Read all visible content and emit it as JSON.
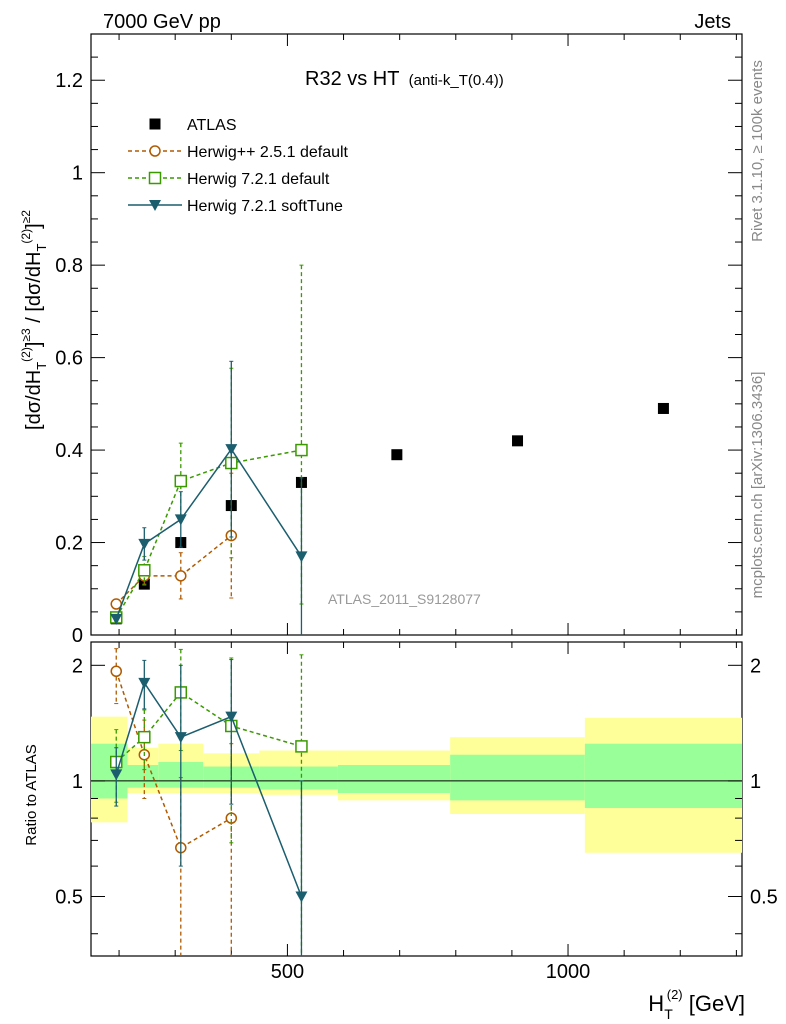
{
  "header": {
    "left": "7000 GeV pp",
    "right": "Jets"
  },
  "side_labels": {
    "rivet": "Rivet 3.1.10, ≥ 100k events",
    "mcplots": "mcplots.cern.ch [arXiv:1306.3436]"
  },
  "plot_title": {
    "main": "R32 vs HT",
    "sub": "(anti-k_T(0.4))"
  },
  "analysis_label": "ATLAS_2011_S9128077",
  "colors": {
    "atlas": "#000000",
    "herwigpp": "#b05a00",
    "h721_default": "#3a9a00",
    "h721_soft": "#1b5e6e",
    "band_outer": "#ffff99",
    "band_inner": "#99ff99"
  },
  "chart_data": [
    {
      "type": "scatter",
      "title": "R32 vs HT (anti-kT(0.4))",
      "ylabel": "[dσ/dH_T^(2)]^{≥3} / [dσ/dH_T^(2)]^{≥2}",
      "xlabel": "H_T^(2) [GeV]",
      "xlim": [
        150,
        1310
      ],
      "ylim": [
        0,
        1.3
      ],
      "yticks": [
        "0",
        "0.2",
        "0.4",
        "0.6",
        "0.8",
        "1",
        "1.2"
      ],
      "legend": [
        {
          "name": "ATLAS",
          "style": "filled-square"
        },
        {
          "name": "Herwig++ 2.5.1 default",
          "style": "open-circle-dashed"
        },
        {
          "name": "Herwig 7.2.1 default",
          "style": "open-square-dashed"
        },
        {
          "name": "Herwig 7.2.1 softTune",
          "style": "filled-triangle-solid"
        }
      ],
      "series": [
        {
          "name": "ATLAS",
          "x": [
            195,
            245,
            310,
            400,
            525,
            695,
            910,
            1170
          ],
          "y": [
            0.035,
            0.11,
            0.2,
            0.28,
            0.33,
            0.39,
            0.42,
            0.49
          ]
        },
        {
          "name": "Herwig++ 2.5.1 default",
          "x": [
            195,
            245,
            310,
            400
          ],
          "y": [
            0.067,
            0.128,
            0.128,
            0.215
          ],
          "err": [
            [
              0.003,
              0.003
            ],
            [
              0.02,
              0.02
            ],
            [
              0.05,
              0.05
            ],
            [
              0.135,
              0.135
            ]
          ]
        },
        {
          "name": "Herwig 7.2.1 default",
          "x": [
            195,
            245,
            310,
            400,
            525
          ],
          "y": [
            0.038,
            0.14,
            0.333,
            0.372,
            0.4
          ],
          "err": [
            [
              0.006,
              0.006
            ],
            [
              0.03,
              0.03
            ],
            [
              0.082,
              0.082
            ],
            [
              0.205,
              0.205
            ],
            [
              0.333,
              0.4
            ]
          ]
        },
        {
          "name": "Herwig 7.2.1 softTune",
          "x": [
            195,
            245,
            310,
            400,
            525
          ],
          "y": [
            0.035,
            0.197,
            0.25,
            0.402,
            0.17
          ],
          "err": [
            [
              0.005,
              0.005
            ],
            [
              0.035,
              0.035
            ],
            [
              0.06,
              0.06
            ],
            [
              0.19,
              0.19
            ],
            [
              0.17,
              0.17
            ]
          ]
        }
      ]
    },
    {
      "type": "scatter",
      "ylabel": "Ratio to ATLAS",
      "xlabel": "H_T^(2) [GeV]",
      "xlim": [
        150,
        1310
      ],
      "ylim": [
        0.35,
        2.3
      ],
      "yscale": "log",
      "yticks": [
        "0.5",
        "1",
        "2"
      ],
      "xticks": [
        "500",
        "1000"
      ],
      "bands": [
        {
          "x0": 150,
          "x1": 215,
          "outer": [
            0.78,
            1.47
          ],
          "inner": [
            0.9,
            1.25
          ]
        },
        {
          "x0": 215,
          "x1": 270,
          "outer": [
            0.93,
            1.22
          ],
          "inner": [
            0.96,
            1.1
          ]
        },
        {
          "x0": 270,
          "x1": 350,
          "outer": [
            0.93,
            1.25
          ],
          "inner": [
            0.96,
            1.12
          ]
        },
        {
          "x0": 350,
          "x1": 450,
          "outer": [
            0.93,
            1.18
          ],
          "inner": [
            0.96,
            1.09
          ]
        },
        {
          "x0": 450,
          "x1": 590,
          "outer": [
            0.92,
            1.2
          ],
          "inner": [
            0.95,
            1.09
          ]
        },
        {
          "x0": 590,
          "x1": 790,
          "outer": [
            0.89,
            1.2
          ],
          "inner": [
            0.93,
            1.1
          ]
        },
        {
          "x0": 790,
          "x1": 1030,
          "outer": [
            0.82,
            1.3
          ],
          "inner": [
            0.89,
            1.17
          ]
        },
        {
          "x0": 1030,
          "x1": 1310,
          "outer": [
            0.65,
            1.46
          ],
          "inner": [
            0.85,
            1.25
          ]
        }
      ],
      "series": [
        {
          "name": "Herwig++ 2.5.1 default",
          "x": [
            195,
            245,
            310,
            400
          ],
          "y": [
            1.93,
            1.17,
            0.67,
            0.8
          ],
          "err": [
            [
              0.34,
              0.28
            ],
            [
              0.27,
              0.27
            ],
            [
              0.35,
              0.35
            ],
            [
              0.45,
              0.45
            ]
          ]
        },
        {
          "name": "Herwig 7.2.1 default",
          "x": [
            195,
            245,
            310,
            400,
            525
          ],
          "y": [
            1.12,
            1.3,
            1.7,
            1.39,
            1.23
          ],
          "err": [
            [
              0.24,
              0.24
            ],
            [
              0.23,
              0.23
            ],
            [
              0.5,
              0.5
            ],
            [
              0.7,
              0.7
            ],
            [
              0.9,
              0.9
            ]
          ]
        },
        {
          "name": "Herwig 7.2.1 softTune",
          "x": [
            195,
            245,
            310,
            400,
            525
          ],
          "y": [
            1.04,
            1.8,
            1.3,
            1.47,
            0.5
          ],
          "err": [
            [
              0.18,
              0.18
            ],
            [
              0.26,
              0.26
            ],
            [
              0.7,
              0.7
            ],
            [
              0.6,
              0.6
            ],
            [
              0.5,
              0.5
            ]
          ]
        }
      ]
    }
  ]
}
